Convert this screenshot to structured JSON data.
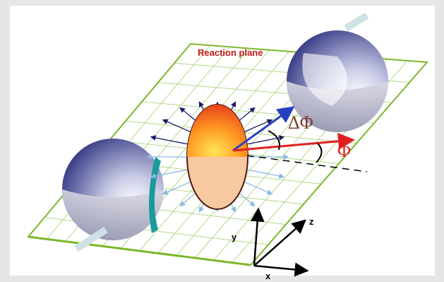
{
  "diagram": {
    "plane_label": "Reaction plane",
    "delta_phi_label": "ΔΦ",
    "phi_label": "Φ",
    "axes": {
      "y": "y",
      "z": "z",
      "x": "x"
    }
  }
}
